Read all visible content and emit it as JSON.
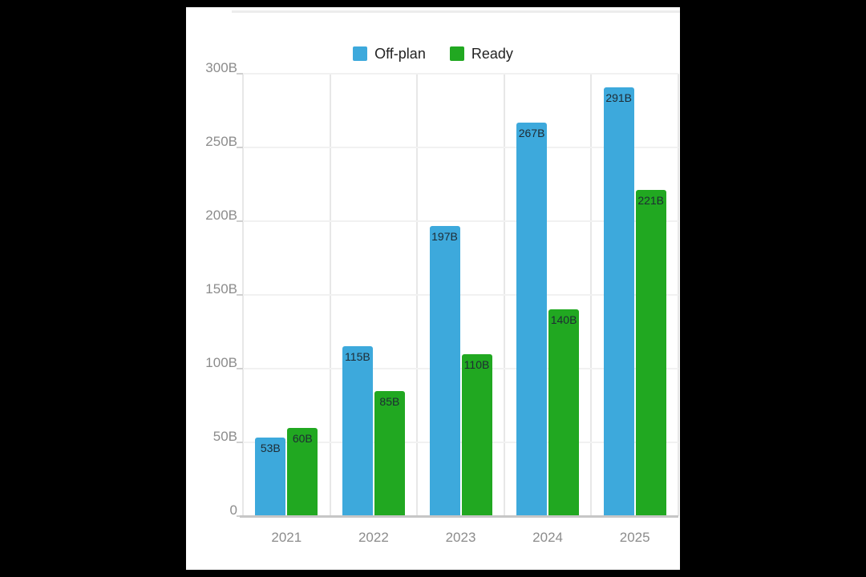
{
  "window": {
    "background": "#000000",
    "card_background": "#FFFFFF"
  },
  "legend": {
    "text_color": "#222222",
    "items": [
      {
        "label": "Off-plan",
        "color": "#3DA9DC"
      },
      {
        "label": "Ready",
        "color": "#21A821"
      }
    ]
  },
  "chart_data": {
    "type": "bar",
    "title": "",
    "categories": [
      "2021",
      "2022",
      "2023",
      "2024",
      "2025"
    ],
    "series": [
      {
        "name": "Off-plan",
        "color": "#3DA9DC",
        "values": [
          53,
          115,
          197,
          267,
          291
        ],
        "data_labels": [
          "53B",
          "115B",
          "197B",
          "267B",
          "291B"
        ]
      },
      {
        "name": "Ready",
        "color": "#21A821",
        "values": [
          60,
          85,
          110,
          140,
          221
        ],
        "data_labels": [
          "60B",
          "85B",
          "110B",
          "140B",
          "221B"
        ]
      }
    ],
    "y_axis": {
      "max": 300,
      "ticks": [
        {
          "label": "0",
          "value": 0
        },
        {
          "label": "50B",
          "value": 50
        },
        {
          "label": "100B",
          "value": 100
        },
        {
          "label": "150B",
          "value": 150
        },
        {
          "label": "200B",
          "value": 200
        },
        {
          "label": "250B",
          "value": 250
        },
        {
          "label": "300B",
          "value": 300
        }
      ]
    },
    "grid": true,
    "legend_position": "top",
    "datalabel_color": "#1e2b33",
    "axis_label_color": "#8c8c8c"
  }
}
